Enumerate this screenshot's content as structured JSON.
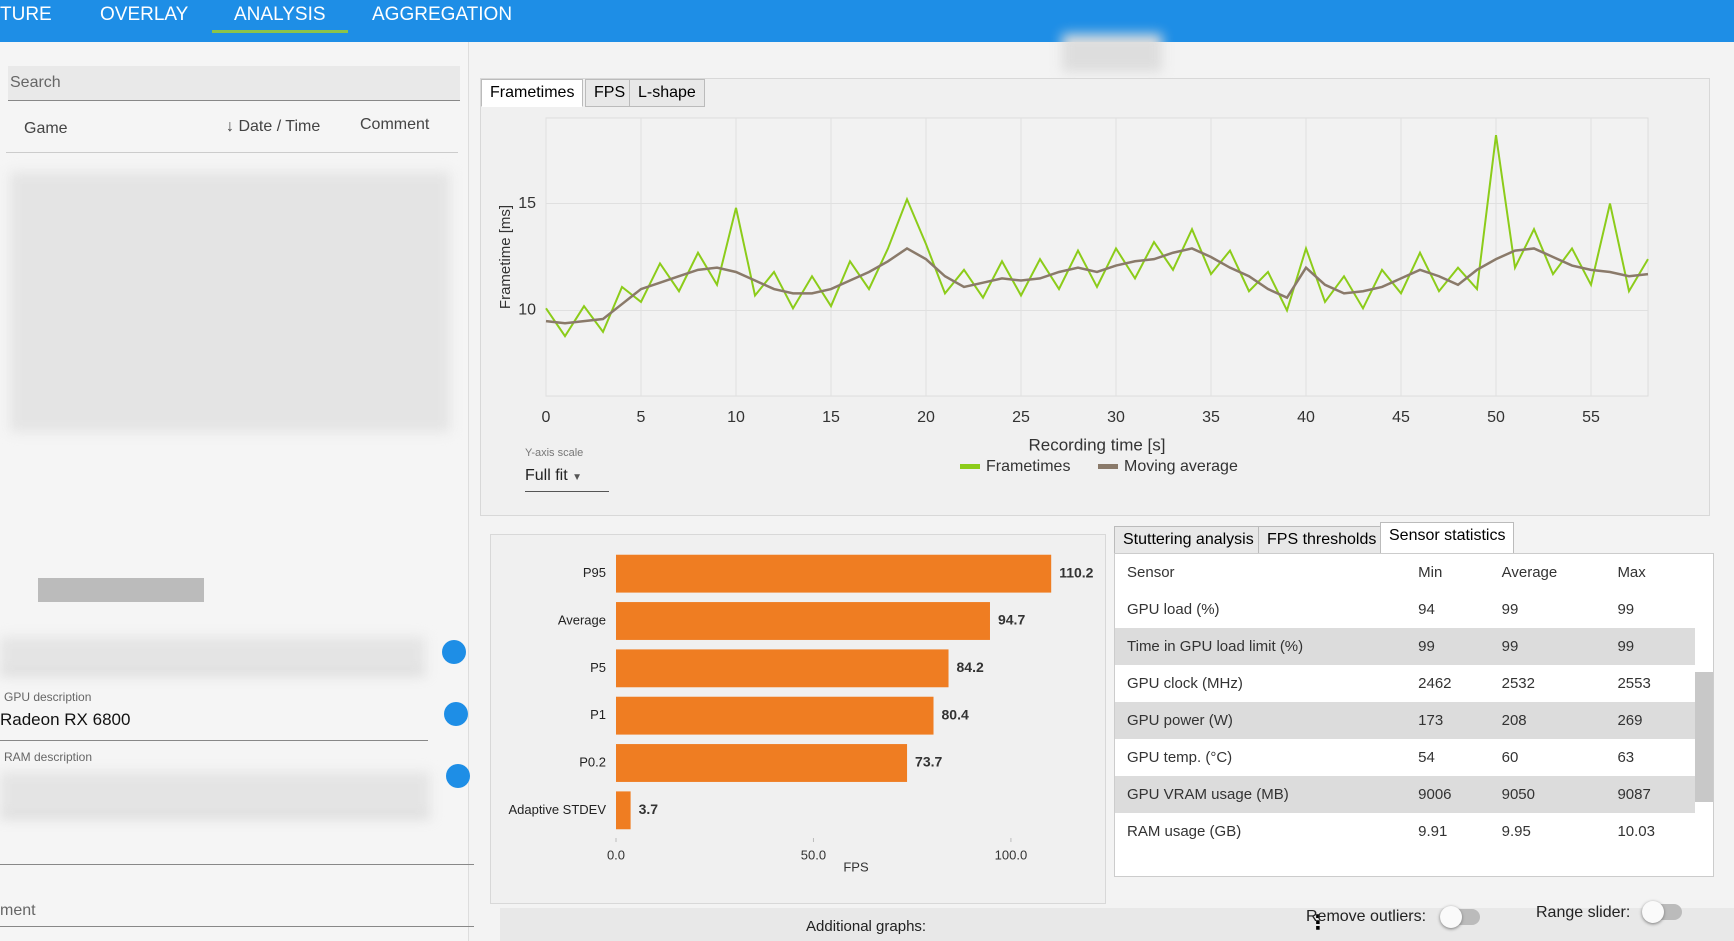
{
  "nav": [
    "TURE",
    "OVERLAY",
    "ANALYSIS",
    "AGGREGATION"
  ],
  "left": {
    "search": "Search",
    "columns": [
      "Game",
      "Date / Time",
      "Comment"
    ],
    "gpu_label": "GPU description",
    "gpu_value": "Radeon RX 6800",
    "ram_label": "RAM description",
    "comment_label": "ment"
  },
  "chart_tabs": [
    "Frametimes",
    "FPS",
    "L-shape"
  ],
  "y_scale": {
    "label": "Y-axis scale",
    "value": "Full fit"
  },
  "chart_data": [
    {
      "type": "line",
      "y_label": "Frametime [ms]",
      "x_label": "Recording time [s]",
      "x": [
        0,
        1,
        2,
        3,
        4,
        5,
        6,
        7,
        8,
        9,
        10,
        11,
        12,
        13,
        14,
        15,
        16,
        17,
        18,
        19,
        20,
        21,
        22,
        23,
        24,
        25,
        26,
        27,
        28,
        29,
        30,
        31,
        32,
        33,
        34,
        35,
        36,
        37,
        38,
        39,
        40,
        41,
        42,
        43,
        44,
        45,
        46,
        47,
        48,
        49,
        50,
        51,
        52,
        53,
        54,
        55,
        56,
        57,
        58
      ],
      "series": [
        {
          "name": "Frametimes",
          "color": "#8ccc1a",
          "values": [
            10.1,
            8.8,
            10.2,
            9.0,
            11.1,
            10.4,
            12.2,
            10.9,
            12.7,
            11.2,
            14.8,
            10.7,
            11.8,
            10.1,
            11.6,
            10.2,
            12.3,
            11.0,
            12.9,
            15.2,
            13.1,
            10.8,
            11.9,
            10.6,
            12.3,
            10.7,
            12.4,
            11.0,
            12.8,
            11.1,
            12.9,
            11.5,
            13.2,
            11.9,
            13.8,
            11.7,
            12.8,
            10.9,
            11.8,
            10.0,
            12.9,
            10.4,
            11.6,
            10.1,
            11.9,
            10.8,
            12.7,
            10.9,
            12.0,
            11.0,
            18.2,
            12.0,
            13.8,
            11.7,
            12.9,
            11.2,
            15.0,
            10.9,
            12.4
          ]
        },
        {
          "name": "Moving average",
          "color": "#8a7a6a",
          "values": [
            9.5,
            9.4,
            9.5,
            9.6,
            10.3,
            11,
            11.3,
            11.6,
            11.9,
            12,
            11.8,
            11.4,
            11,
            10.8,
            10.8,
            11,
            11.4,
            11.8,
            12.3,
            12.9,
            12.4,
            11.6,
            11.1,
            11.3,
            11.5,
            11.4,
            11.5,
            11.8,
            12,
            11.8,
            12.1,
            12.3,
            12.4,
            12.7,
            12.9,
            12.5,
            12,
            11.6,
            11,
            10.6,
            12,
            11.2,
            10.8,
            10.9,
            11.1,
            11.5,
            11.9,
            11.6,
            11.2,
            11.9,
            12.4,
            12.8,
            12.9,
            12.5,
            12.1,
            11.9,
            11.8,
            11.6,
            11.7
          ]
        }
      ],
      "xlim": [
        0,
        58
      ],
      "xticks": [
        0,
        5,
        10,
        15,
        20,
        25,
        30,
        35,
        40,
        45,
        50,
        55
      ],
      "ylim": [
        6,
        19
      ],
      "yticks": [
        10,
        15
      ],
      "grid": true
    },
    {
      "type": "hbar",
      "x_label": "FPS",
      "color": "#ef7d22",
      "categories": [
        "P95",
        "Average",
        "P5",
        "P1",
        "P0.2",
        "Adaptive STDEV"
      ],
      "values": [
        110.2,
        94.7,
        84.2,
        80.4,
        73.7,
        3.7
      ],
      "xlim": [
        0,
        118
      ],
      "xticks": [
        {
          "value": 0,
          "label": "0.0"
        },
        {
          "value": 50,
          "label": "50.0"
        },
        {
          "value": 100,
          "label": "100.0"
        }
      ]
    }
  ],
  "stats_tabs": [
    "Stuttering analysis",
    "FPS thresholds",
    "Sensor statistics"
  ],
  "sensor_table": {
    "header": [
      "Sensor",
      "Min",
      "Average",
      "Max"
    ],
    "rows": [
      [
        "GPU load (%)",
        "94",
        "99",
        "99"
      ],
      [
        "Time in GPU load limit (%)",
        "99",
        "99",
        "99"
      ],
      [
        "GPU clock (MHz)",
        "2462",
        "2532",
        "2553"
      ],
      [
        "GPU power (W)",
        "173",
        "208",
        "269"
      ],
      [
        "GPU temp. (°C)",
        "54",
        "60",
        "63"
      ],
      [
        "GPU VRAM usage (MB)",
        "9006",
        "9050",
        "9087"
      ],
      [
        "RAM usage (GB)",
        "9.91",
        "9.95",
        "10.03"
      ]
    ]
  },
  "footer": {
    "additional": "Additional graphs:",
    "outliers": "Remove outliers:",
    "range": "Range slider:"
  }
}
